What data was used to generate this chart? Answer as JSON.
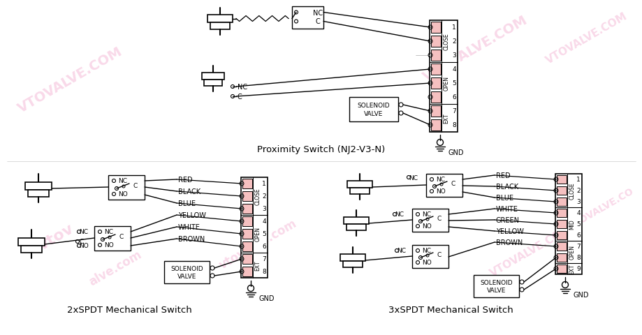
{
  "title_top": "Proximity Switch (NJ2-V3-N)",
  "title_bl": "2xSPDT Mechanical Switch",
  "title_br": "3xSPDT Mechanical Switch",
  "bg_color": "#ffffff",
  "wm_color": "#f0a0c8",
  "bl_colors": [
    "RED",
    "BLACK",
    "BLUE",
    "YELLOW",
    "WHITE",
    "BROWN"
  ],
  "br_colors": [
    "RED",
    "BLACK",
    "BLUE",
    "WHITE",
    "GREEN",
    "YELLOW",
    "BROWN"
  ]
}
